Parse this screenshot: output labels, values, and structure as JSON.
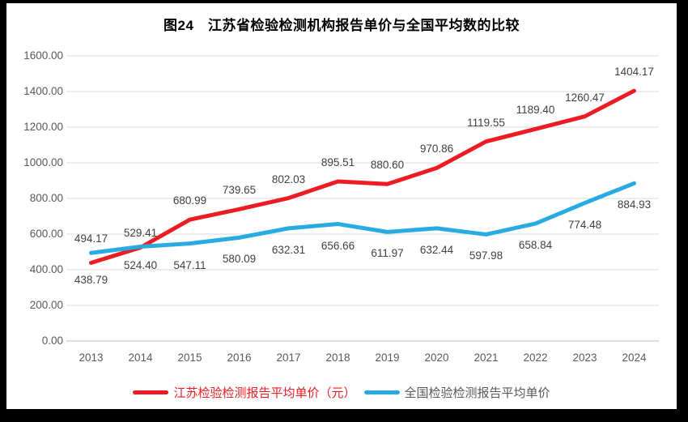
{
  "title": "图24　江苏省检验检测机构报告单价与全国平均数的比较",
  "colors": {
    "frame_border": "#000000",
    "chart_background": "#ffffff",
    "gridline": "#d9d9d9",
    "axis_line": "#bfbfbf",
    "axis_text": "#595959",
    "data_label_text": "#404040",
    "series_jiangsu": "#ed1c24",
    "series_national": "#29abe2",
    "legend_text_national": "#595959"
  },
  "chart_data": {
    "type": "line",
    "title": "图24　江苏省检验检测机构报告单价与全国平均数的比较",
    "categories": [
      "2013",
      "2014",
      "2015",
      "2016",
      "2017",
      "2018",
      "2019",
      "2020",
      "2021",
      "2022",
      "2023",
      "2024"
    ],
    "series": [
      {
        "name": "江苏检验检测报告平均单价（元）",
        "color": "#ed1c24",
        "legend_text_color": "#ed1c24",
        "values": [
          438.79,
          524.4,
          680.99,
          739.65,
          802.03,
          895.51,
          880.6,
          970.86,
          1119.55,
          1189.4,
          1260.47,
          1404.17
        ],
        "label_pos": [
          "below",
          "below",
          "above",
          "above",
          "above",
          "above",
          "above",
          "above",
          "above",
          "above",
          "above",
          "above"
        ]
      },
      {
        "name": "全国检验检测报告平均单价",
        "color": "#29abe2",
        "legend_text_color": "#595959",
        "values": [
          494.17,
          529.41,
          547.11,
          580.09,
          632.31,
          656.66,
          611.97,
          632.44,
          597.98,
          658.84,
          774.48,
          884.93
        ],
        "label_pos": [
          "above",
          "above",
          "below",
          "below",
          "below",
          "below",
          "below",
          "below",
          "below",
          "below",
          "below",
          "below"
        ]
      }
    ],
    "xlabel": "",
    "ylabel": "",
    "ylim": [
      0,
      1600
    ],
    "ytick_step": 200,
    "yticks": [
      "0.00",
      "200.00",
      "400.00",
      "600.00",
      "800.00",
      "1000.00",
      "1200.00",
      "1400.00",
      "1600.00"
    ],
    "grid": true,
    "legend_position": "bottom"
  }
}
